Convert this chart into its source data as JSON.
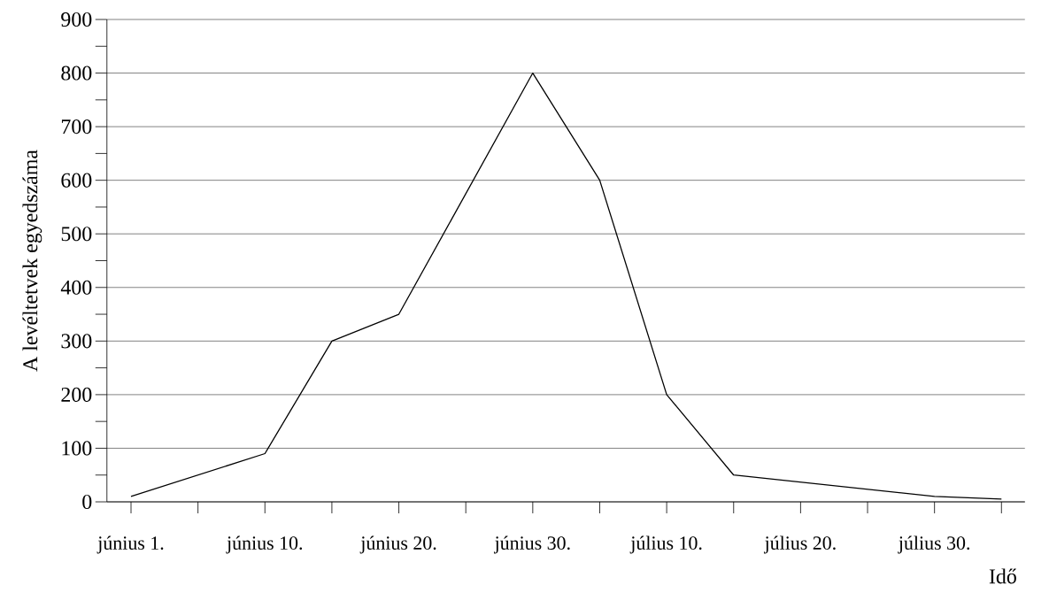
{
  "chart_data": {
    "type": "line",
    "xlabel": "Idő",
    "ylabel": "A levéltetvek egyedszáma",
    "categories": [
      "június 1.",
      null,
      "június 10.",
      null,
      "június 20.",
      null,
      "június 30.",
      null,
      "július 10.",
      null,
      "július 20.",
      null,
      "július 30.",
      null
    ],
    "series": [
      {
        "color": "#000000",
        "values": [
          10,
          null,
          90,
          300,
          350,
          null,
          800,
          600,
          200,
          50,
          null,
          null,
          10,
          5
        ]
      }
    ],
    "ylim": [
      0,
      900
    ],
    "yticks": [
      0,
      {
        "value": 50,
        "label": null
      },
      100,
      {
        "value": 150,
        "label": null
      },
      200,
      {
        "value": 250,
        "label": null
      },
      300,
      {
        "value": 350,
        "label": null
      },
      400,
      {
        "value": 450,
        "label": null
      },
      500,
      {
        "value": 550,
        "label": null
      },
      600,
      {
        "value": 650,
        "label": null
      },
      700,
      {
        "value": 750,
        "label": null
      },
      800,
      {
        "value": 850,
        "label": null
      },
      900
    ],
    "grid": "y"
  }
}
